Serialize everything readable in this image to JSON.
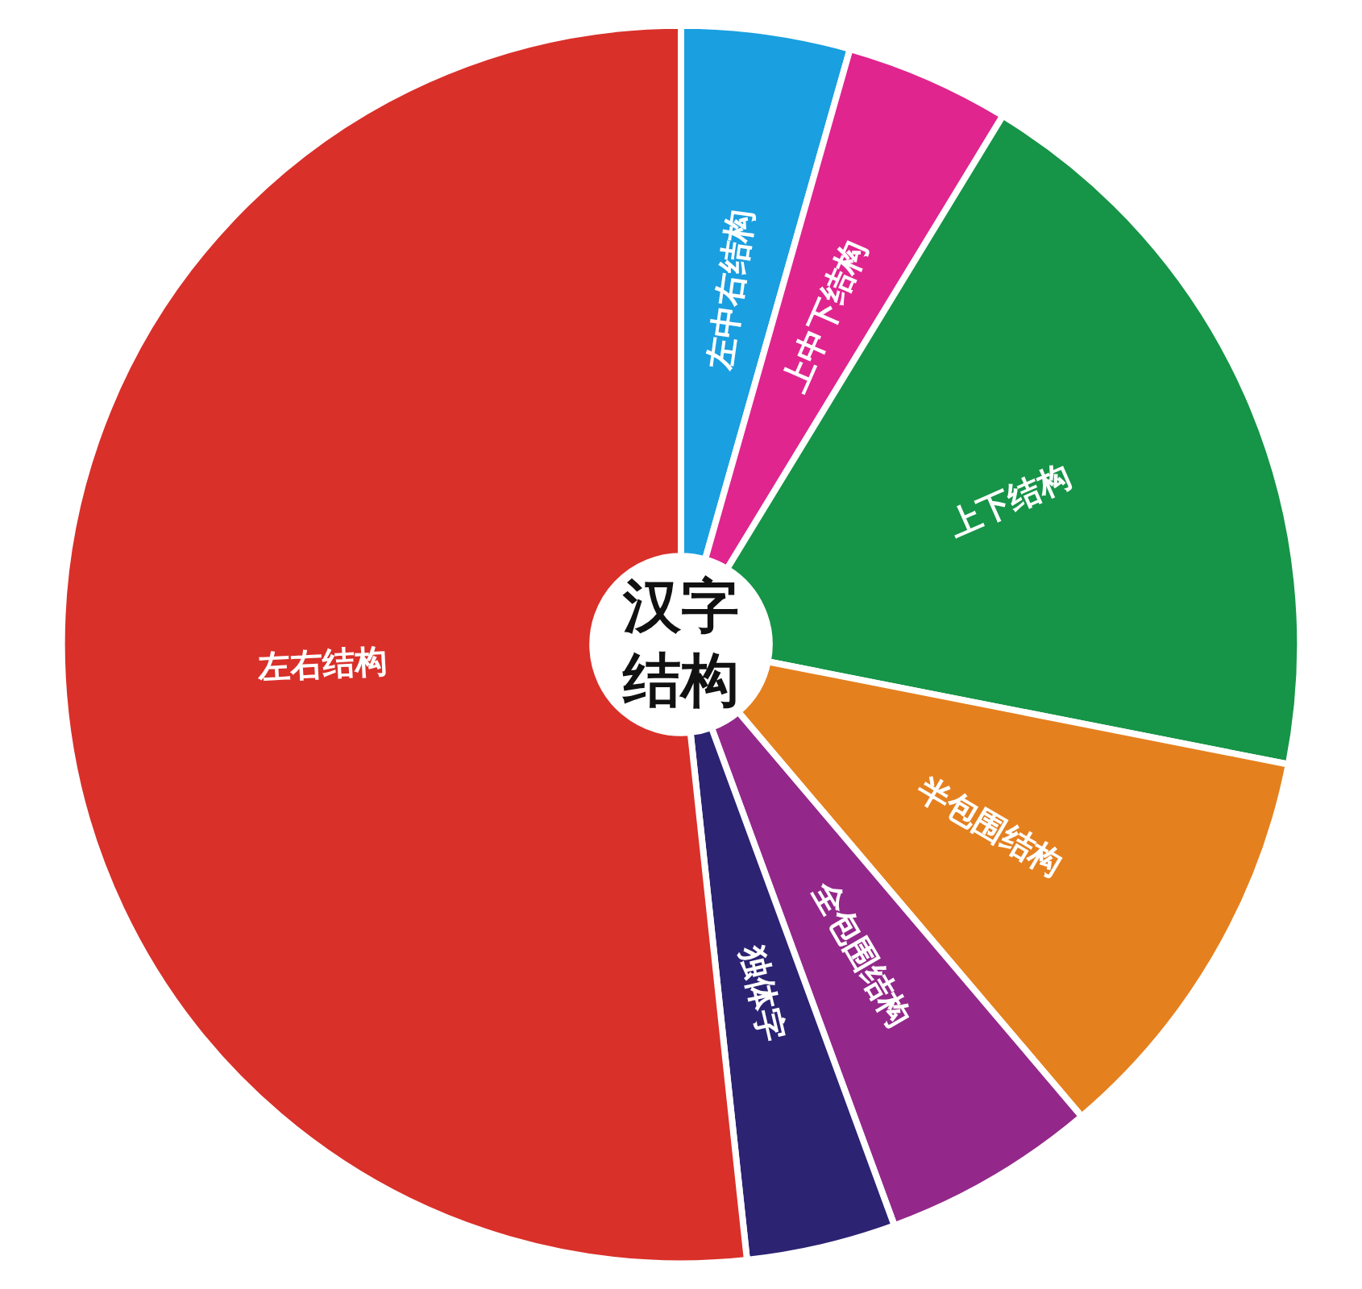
{
  "chart_data": {
    "type": "donut",
    "title": "汉字结构",
    "categories": [
      "左中右结构",
      "上中下结构",
      "上下结构",
      "半包围结构",
      "全包围结构",
      "独体字",
      "左右结构"
    ],
    "values": [
      4.4,
      4.3,
      19.4,
      10.7,
      5.6,
      3.9,
      51.7
    ],
    "colors": [
      "#1a9fe0",
      "#e0258f",
      "#169447",
      "#e5801f",
      "#93288a",
      "#2c2373",
      "#d9302a"
    ]
  }
}
